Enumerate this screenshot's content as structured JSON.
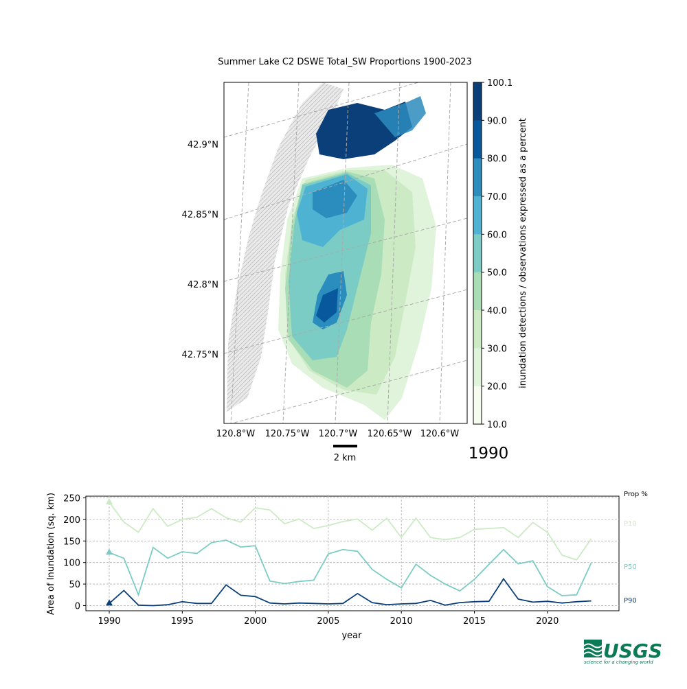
{
  "map": {
    "title": "Summer Lake C2 DSWE Total_SW Proportions 1900-2023",
    "lat_labels": [
      "42.9°N",
      "42.85°N",
      "42.8°N",
      "42.75°N"
    ],
    "lon_labels": [
      "120.8°W",
      "120.75°W",
      "120.7°W",
      "120.65°W",
      "120.6°W"
    ],
    "scale_bar_label": "2 km",
    "year": "1990",
    "colorbar": {
      "label": "inundation detections / observations expressed as a percent",
      "ticks": [
        "100.1",
        "90.0",
        "80.0",
        "70.0",
        "60.0",
        "50.0",
        "40.0",
        "30.0",
        "20.0",
        "10.0"
      ],
      "colors": [
        "#0a3f7a",
        "#08589e",
        "#2b8cbe",
        "#4eb3d3",
        "#7bccc4",
        "#a8ddb5",
        "#ccebc5",
        "#e0f3db",
        "#f7fcf0"
      ]
    },
    "terrain_color": "#d4d4d4"
  },
  "chart_data": {
    "type": "line",
    "xlabel": "year",
    "ylabel": "Area of Inundation (sq. km)",
    "xlim": [
      1988.4,
      1924.9
    ],
    "ylim": [
      -12,
      254
    ],
    "x_ticks": [
      "1990",
      "1995",
      "2000",
      "2005",
      "2010",
      "2015",
      "2020"
    ],
    "y_ticks": [
      "0",
      "50",
      "100",
      "150",
      "200",
      "250"
    ],
    "grid": true,
    "legend_title": "Prop %",
    "x": [
      1990,
      1991,
      1992,
      1993,
      1994,
      1995,
      1996,
      1997,
      1998,
      1999,
      2000,
      2001,
      2002,
      2003,
      2004,
      2005,
      2006,
      2007,
      2008,
      2009,
      2010,
      2011,
      2012,
      2013,
      2014,
      2015,
      2016,
      2017,
      2018,
      2019,
      2020,
      2021,
      2022,
      2023
    ],
    "series": [
      {
        "name": "P10",
        "color": "#ccebc5",
        "values": [
          240,
          194,
          170,
          225,
          184,
          200,
          205,
          225,
          204,
          194,
          227,
          222,
          190,
          201,
          179,
          186,
          195,
          201,
          175,
          203,
          158,
          203,
          158,
          153,
          158,
          177,
          179,
          181,
          158,
          193,
          170,
          117,
          106,
          155
        ]
      },
      {
        "name": "P50",
        "color": "#7bccc4",
        "values": [
          123,
          110,
          25,
          135,
          110,
          125,
          121,
          146,
          152,
          136,
          139,
          57,
          51,
          56,
          59,
          120,
          130,
          126,
          84,
          61,
          41,
          96,
          70,
          50,
          34,
          61,
          96,
          130,
          97,
          104,
          44,
          23,
          25,
          99
        ]
      },
      {
        "name": "P90",
        "color": "#0a3f7a",
        "values": [
          5,
          35,
          1,
          0,
          2,
          9,
          5,
          5,
          48,
          24,
          21,
          6,
          4,
          6,
          5,
          4,
          5,
          28,
          7,
          2,
          4,
          5,
          12,
          1,
          7,
          9,
          10,
          62,
          15,
          8,
          10,
          6,
          9,
          11
        ]
      }
    ],
    "marker_year": 1990
  },
  "logo": {
    "wordmark": "USGS",
    "tagline": "science for a changing world",
    "color": "#0b7a55"
  }
}
